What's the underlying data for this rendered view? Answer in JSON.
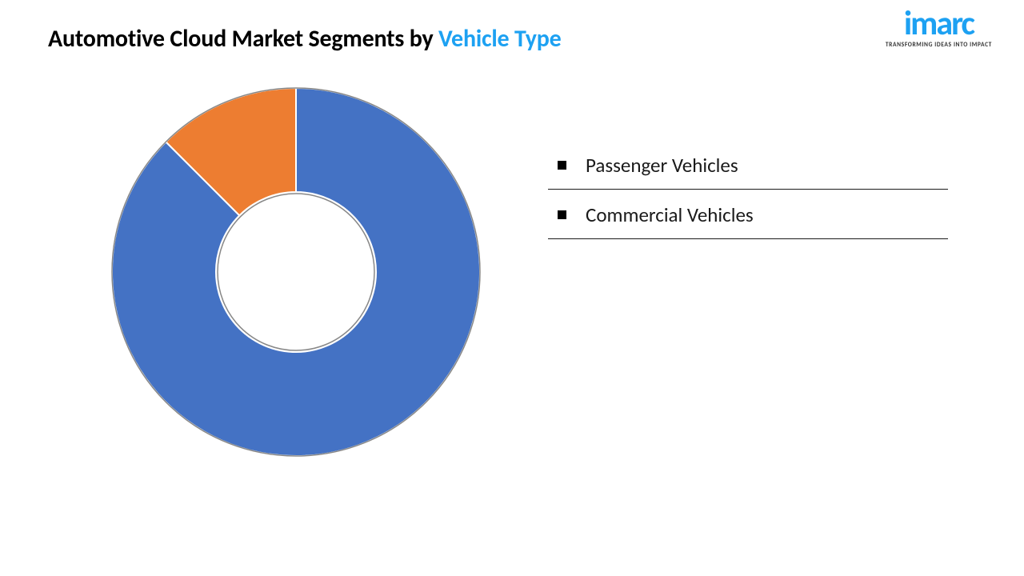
{
  "title": {
    "prefix": "Automotive Cloud Market Segments by ",
    "highlight": "Vehicle Type",
    "fontsize": 30,
    "prefix_color": "#000000",
    "highlight_color": "#1da1f2"
  },
  "logo": {
    "text": "imarc",
    "tagline": "TRANSFORMING IDEAS INTO IMPACT",
    "color": "#1da1f2"
  },
  "chart": {
    "type": "donut",
    "start_angle_deg": 0,
    "outer_radius": 230,
    "inner_radius": 100,
    "inner_hole_radius": 98,
    "stroke_color": "#888888",
    "stroke_width": 1.5,
    "gap_color": "#ffffff",
    "background_color": "#ffffff",
    "slices": [
      {
        "label": "Passenger Vehicles",
        "value": 87.5,
        "color": "#4472c4"
      },
      {
        "label": "Commercial Vehicles",
        "value": 12.5,
        "color": "#ed7d31"
      }
    ]
  },
  "legend": {
    "items": [
      {
        "label": "Passenger Vehicles"
      },
      {
        "label": "Commercial Vehicles"
      }
    ],
    "fontsize": 25,
    "bullet_color": "#000000",
    "underline_color": "#1a1a1a"
  }
}
